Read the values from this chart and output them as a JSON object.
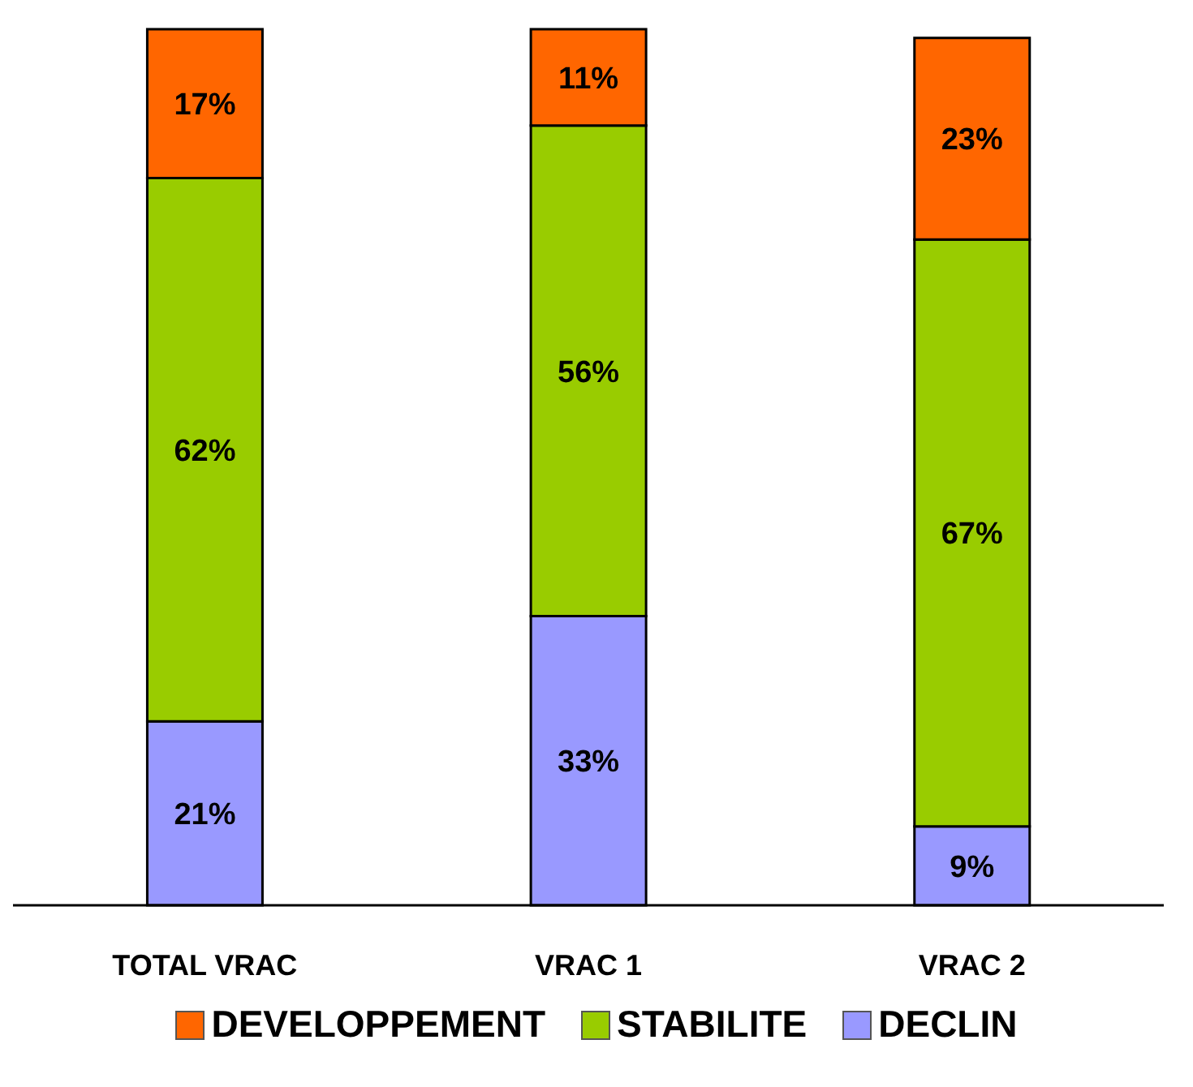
{
  "chart_data": {
    "type": "bar",
    "stacked": true,
    "tick_labels": "x",
    "categories": [
      "TOTAL VRAC",
      "VRAC 1",
      "VRAC 2"
    ],
    "series": [
      {
        "name": "DECLIN",
        "color": "#9999ff",
        "values": [
          21,
          33,
          9
        ],
        "value_labels": [
          "21%",
          "33%",
          "9%"
        ]
      },
      {
        "name": "STABILITE",
        "color": "#99cc00",
        "values": [
          62,
          56,
          67
        ],
        "value_labels": [
          "62%",
          "56%",
          "67%"
        ]
      },
      {
        "name": "DEVELOPPEMENT",
        "color": "#ff6600",
        "values": [
          17,
          11,
          23
        ],
        "value_labels": [
          "17%",
          "11%",
          "23%"
        ]
      }
    ],
    "legend": "bottom",
    "grid": false
  }
}
